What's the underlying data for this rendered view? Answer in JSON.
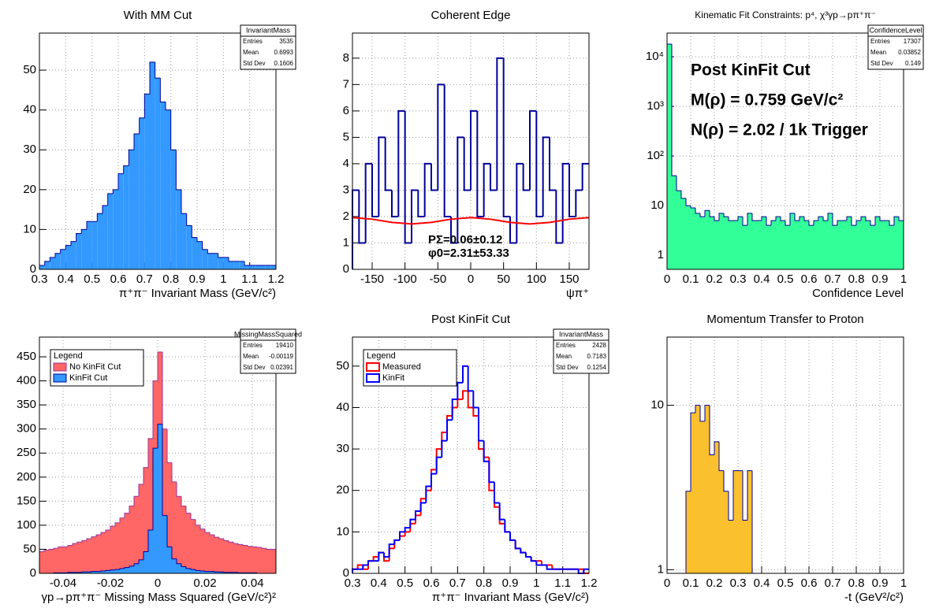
{
  "chart_data": [
    {
      "type": "histogram",
      "title": "With MM Cut",
      "x_label": "π⁺π⁻ Invariant Mass (GeV/c²)",
      "bins": [
        0.3,
        0.32,
        0.34,
        0.36,
        0.38,
        0.4,
        0.42,
        0.44,
        0.46,
        0.48,
        0.5,
        0.52,
        0.54,
        0.56,
        0.58,
        0.6,
        0.62,
        0.64,
        0.66,
        0.68,
        0.7,
        0.72,
        0.74,
        0.76,
        0.78,
        0.8,
        0.82,
        0.84,
        0.86,
        0.88,
        0.9,
        0.92,
        0.94,
        0.96,
        0.98,
        1,
        1.02,
        1.04,
        1.06,
        1.08,
        1.1,
        1.12,
        1.14,
        1.16,
        1.18,
        1.2
      ],
      "series": [
        {
          "color": "#000099",
          "fill": "#3399ff",
          "values": [
            1,
            2,
            3,
            4,
            5,
            6,
            7,
            9,
            10,
            12,
            12,
            14,
            16,
            19,
            20,
            24,
            26,
            30,
            34,
            38,
            44,
            52,
            48,
            42,
            40,
            30,
            20,
            14,
            11,
            8,
            7,
            5,
            4,
            4,
            3,
            3,
            2,
            2,
            2,
            1,
            1,
            1,
            1,
            1,
            1
          ]
        }
      ],
      "xlim": [
        0.3,
        1.2
      ],
      "ylim": [
        0,
        59.3
      ],
      "xticks": [
        0.3,
        0.4,
        0.5,
        0.6,
        0.7,
        0.8,
        0.9,
        1,
        1.1,
        1.2
      ],
      "yticks": [
        0,
        10,
        20,
        30,
        40,
        50
      ],
      "log_y": false,
      "grid": true,
      "stats": {
        "title": "InvariantMass",
        "rows": [
          [
            "Entries",
            3535
          ],
          [
            "Mean",
            0.6993
          ],
          [
            "Std Dev",
            0.1606
          ]
        ]
      }
    },
    {
      "type": "histogram",
      "title": "Coherent Edge",
      "x_label": "ψπ⁺",
      "bins": [
        -180,
        -170,
        -160,
        -150,
        -140,
        -130,
        -120,
        -110,
        -100,
        -90,
        -80,
        -70,
        -60,
        -50,
        -40,
        -30,
        -20,
        -10,
        0,
        10,
        20,
        30,
        40,
        50,
        60,
        70,
        80,
        90,
        100,
        110,
        120,
        130,
        140,
        150,
        160,
        170,
        180
      ],
      "series": [
        {
          "color": "#000099",
          "values": [
            3,
            1,
            4,
            2,
            5,
            3,
            2,
            6,
            1,
            3,
            2,
            4,
            3,
            7,
            2,
            1,
            5,
            3,
            6,
            2,
            4,
            3,
            8,
            2,
            1,
            4,
            3,
            6,
            2,
            5,
            3,
            1,
            4,
            2,
            3,
            4
          ]
        },
        {
          "color": "#ff0000",
          "x": [
            -180,
            -150,
            -120,
            -90,
            -60,
            -30,
            0,
            30,
            60,
            90,
            120,
            150,
            180
          ],
          "values": [
            1.96,
            1.9,
            1.78,
            1.72,
            1.78,
            1.9,
            1.96,
            1.9,
            1.78,
            1.72,
            1.78,
            1.9,
            1.96
          ]
        }
      ],
      "xlim": [
        -180,
        180
      ],
      "ylim": [
        0,
        8.95
      ],
      "xticks": [
        -150,
        -100,
        -50,
        0,
        50,
        100,
        150
      ],
      "yticks": [
        0,
        1,
        2,
        3,
        4,
        5,
        6,
        7,
        8
      ],
      "log_y": false,
      "grid": true,
      "annotations": [
        "PΣ=0.06±0.12",
        "φ0=2.31±53.33"
      ]
    },
    {
      "type": "histogram",
      "title": "Kinematic Fit Constraints: p⁴, χ³γp→pπ⁺π⁻",
      "x_label": "Confidence Level",
      "bins": [
        0,
        0.02,
        0.04,
        0.06,
        0.08,
        0.1,
        0.12,
        0.14,
        0.16,
        0.18,
        0.2,
        0.22,
        0.24,
        0.26,
        0.28,
        0.3,
        0.32,
        0.34,
        0.36,
        0.38,
        0.4,
        0.42,
        0.44,
        0.46,
        0.48,
        0.5,
        0.52,
        0.54,
        0.56,
        0.58,
        0.6,
        0.62,
        0.64,
        0.66,
        0.68,
        0.7,
        0.72,
        0.74,
        0.76,
        0.78,
        0.8,
        0.82,
        0.84,
        0.86,
        0.88,
        0.9,
        0.92,
        0.94,
        0.96,
        0.98,
        1
      ],
      "series": [
        {
          "color": "#000099",
          "fill": "#33ff99",
          "values": [
            18000,
            40,
            20,
            14,
            10,
            9,
            7,
            6,
            8,
            6,
            5,
            7,
            6,
            5,
            5,
            6,
            4,
            7,
            5,
            5,
            6,
            4,
            5,
            6,
            5,
            4,
            7,
            5,
            6,
            5,
            4,
            5,
            6,
            5,
            7,
            4,
            5,
            5,
            6,
            4,
            5,
            6,
            5,
            4,
            6,
            5,
            5,
            4,
            6,
            5
          ]
        }
      ],
      "xlim": [
        0,
        1
      ],
      "ylim": [
        0.52,
        30000
      ],
      "xticks": [
        0,
        0.1,
        0.2,
        0.3,
        0.4,
        0.5,
        0.6,
        0.7,
        0.8,
        0.9,
        1
      ],
      "yticks": [
        1,
        10,
        {
          "value": 100,
          "label": "10²"
        },
        {
          "value": 1000,
          "label": "10³"
        },
        {
          "value": 10000,
          "label": "10⁴"
        }
      ],
      "log_y": true,
      "grid": true,
      "stats": {
        "title": "ConfidenceLevel",
        "rows": [
          [
            "Entries",
            17307
          ],
          [
            "Mean",
            0.03852
          ],
          [
            "Std Dev",
            0.149
          ]
        ]
      },
      "annotations": [
        "Post KinFit Cut",
        "M(ρ) = 0.759 GeV/c²",
        "N(ρ) = 2.02 / 1k Trigger"
      ]
    },
    {
      "type": "histogram",
      "title": "",
      "x_label": "γp→pπ⁺π⁻ Missing Mass Squared (GeV/c²)²",
      "bins": [
        -0.05,
        -0.048,
        -0.046,
        -0.044,
        -0.042,
        -0.04,
        -0.038,
        -0.036,
        -0.034,
        -0.032,
        -0.03,
        -0.028,
        -0.026,
        -0.024,
        -0.022,
        -0.02,
        -0.018,
        -0.016,
        -0.014,
        -0.012,
        -0.01,
        -0.008,
        -0.006,
        -0.004,
        -0.002,
        0,
        0.002,
        0.004,
        0.006,
        0.008,
        0.01,
        0.012,
        0.014,
        0.016,
        0.018,
        0.02,
        0.022,
        0.024,
        0.026,
        0.028,
        0.03,
        0.032,
        0.034,
        0.036,
        0.038,
        0.04,
        0.042,
        0.044,
        0.046,
        0.048,
        0.05
      ],
      "series": [
        {
          "name": "No KinFit Cut",
          "color": "#993399",
          "fill": "#ff6666",
          "values": [
            45,
            48,
            50,
            52,
            55,
            55,
            58,
            62,
            65,
            68,
            72,
            76,
            80,
            85,
            90,
            98,
            105,
            115,
            125,
            140,
            160,
            185,
            220,
            280,
            400,
            460,
            300,
            230,
            190,
            160,
            140,
            125,
            112,
            100,
            92,
            85,
            80,
            75,
            72,
            68,
            65,
            62,
            60,
            58,
            56,
            55,
            54,
            52,
            50,
            50
          ]
        },
        {
          "name": "KinFit Cut",
          "color": "#000099",
          "fill": "#3399ff",
          "values": [
            0,
            0,
            0,
            1,
            1,
            1,
            2,
            2,
            2,
            3,
            3,
            4,
            4,
            5,
            6,
            7,
            8,
            10,
            12,
            15,
            20,
            28,
            45,
            90,
            260,
            310,
            120,
            55,
            30,
            20,
            14,
            10,
            8,
            6,
            5,
            4,
            4,
            3,
            3,
            2,
            2,
            2,
            1,
            1,
            1,
            1,
            0,
            0,
            0,
            0
          ]
        }
      ],
      "xlim": [
        -0.05,
        0.05
      ],
      "ylim": [
        0,
        491
      ],
      "xticks": [
        -0.04,
        -0.02,
        0,
        0.02,
        0.04
      ],
      "yticks": [
        0,
        50,
        100,
        150,
        200,
        250,
        300,
        350,
        400,
        450
      ],
      "log_y": false,
      "grid": true,
      "legend": {
        "title": "Legend",
        "position": "top-left"
      },
      "stats": {
        "title": "MissingMassSquared",
        "rows": [
          [
            "Entries",
            19410
          ],
          [
            "Mean",
            -0.00119
          ],
          [
            "Std Dev",
            0.02391
          ]
        ]
      }
    },
    {
      "type": "histogram",
      "title": "Post KinFit Cut",
      "x_label": "π⁺π⁻ Invariant Mass (GeV/c²)",
      "bins": [
        0.3,
        0.32,
        0.34,
        0.36,
        0.38,
        0.4,
        0.42,
        0.44,
        0.46,
        0.48,
        0.5,
        0.52,
        0.54,
        0.56,
        0.58,
        0.6,
        0.62,
        0.64,
        0.66,
        0.68,
        0.7,
        0.72,
        0.74,
        0.76,
        0.78,
        0.8,
        0.82,
        0.84,
        0.86,
        0.88,
        0.9,
        0.92,
        0.94,
        0.96,
        0.98,
        1,
        1.02,
        1.04,
        1.06,
        1.08,
        1.1,
        1.12,
        1.14,
        1.16,
        1.18,
        1.2
      ],
      "series": [
        {
          "name": "Measured",
          "color": "#ff0000",
          "values": [
            1,
            2,
            1,
            3,
            4,
            5,
            3,
            6,
            8,
            9,
            10,
            12,
            14,
            18,
            20,
            25,
            30,
            34,
            38,
            40,
            42,
            44,
            40,
            38,
            30,
            28,
            20,
            16,
            12,
            10,
            8,
            6,
            5,
            4,
            3,
            3,
            2,
            2,
            1,
            1,
            1,
            1,
            1,
            1,
            0
          ]
        },
        {
          "name": "KinFit",
          "color": "#0000ff",
          "values": [
            1,
            1,
            2,
            3,
            3,
            5,
            4,
            7,
            8,
            10,
            11,
            13,
            15,
            17,
            21,
            24,
            28,
            32,
            37,
            42,
            46,
            50,
            44,
            40,
            32,
            27,
            22,
            17,
            13,
            10,
            8,
            6,
            5,
            4,
            3,
            2,
            2,
            1,
            1,
            1,
            1,
            1,
            1,
            0,
            1
          ]
        }
      ],
      "xlim": [
        0.3,
        1.2
      ],
      "ylim": [
        0,
        57
      ],
      "xticks": [
        0.3,
        0.4,
        0.5,
        0.6,
        0.7,
        0.8,
        0.9,
        1,
        1.1,
        1.2
      ],
      "yticks": [
        0,
        10,
        20,
        30,
        40,
        50
      ],
      "log_y": false,
      "grid": true,
      "legend": {
        "title": "Legend",
        "position": "top-left"
      },
      "stats": {
        "title": "InvariantMass",
        "rows": [
          [
            "Entries",
            2428
          ],
          [
            "Mean",
            0.7183
          ],
          [
            "Std Dev",
            0.1254
          ]
        ]
      }
    },
    {
      "type": "histogram",
      "title": "Momentum Transfer to Proton",
      "x_label": "-t (GeV²/c²)",
      "bins": [
        0,
        0.02,
        0.04,
        0.06,
        0.08,
        0.1,
        0.12,
        0.14,
        0.16,
        0.18,
        0.2,
        0.22,
        0.24,
        0.26,
        0.28,
        0.3,
        0.32,
        0.34,
        0.36,
        0.38,
        0.4,
        0.42,
        0.44,
        0.46,
        0.48,
        0.5,
        0.52,
        0.54,
        0.56,
        0.58,
        0.6,
        0.62,
        0.64,
        0.66,
        0.68,
        0.7,
        0.72,
        0.74,
        0.76,
        0.78,
        0.8,
        0.82,
        0.84,
        0.86,
        0.88,
        0.9,
        0.92,
        0.94,
        0.96,
        0.98,
        1
      ],
      "series": [
        {
          "color": "#000099",
          "fill": "#fbc02d",
          "values": [
            0,
            0,
            0,
            0,
            3,
            9,
            10,
            8,
            10,
            5,
            6,
            4,
            3,
            2,
            4,
            4,
            2,
            4,
            0,
            0,
            0,
            0,
            0,
            0,
            0,
            0,
            0,
            0,
            0,
            0,
            0,
            0,
            0,
            0,
            0,
            0,
            0,
            0,
            0,
            0,
            0,
            0,
            0,
            0,
            0,
            0,
            0,
            0,
            0,
            0
          ]
        }
      ],
      "xlim": [
        0,
        1
      ],
      "ylim": [
        0.95,
        26
      ],
      "xticks": [
        0,
        0.1,
        0.2,
        0.3,
        0.4,
        0.5,
        0.6,
        0.7,
        0.8,
        0.9,
        1
      ],
      "yticks": [
        1,
        10
      ],
      "log_y": true,
      "grid": true
    }
  ]
}
